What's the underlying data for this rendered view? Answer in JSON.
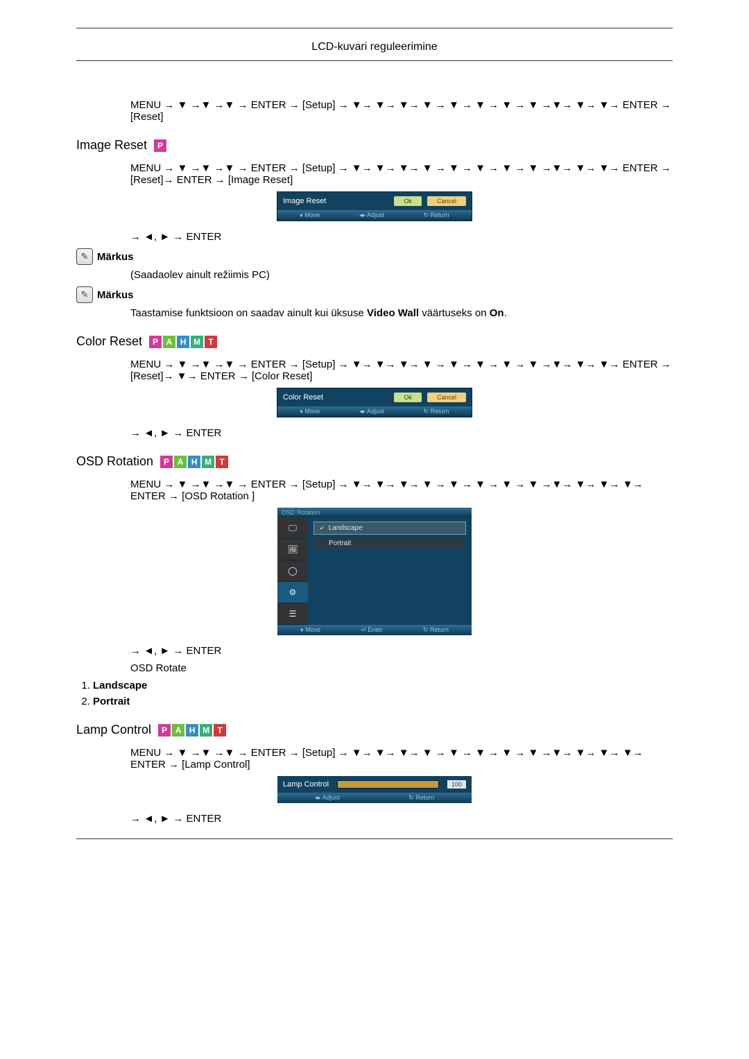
{
  "page": {
    "header": "LCD-kuvari reguleerimine"
  },
  "colors": {
    "badge_P": "#d23a9a",
    "badge_A": "#6bbf3a",
    "badge_H": "#3a8dbf",
    "badge_M": "#33b07a",
    "badge_T": "#d23a3a",
    "osd_bg": "#11425f",
    "osd_dark": "#0a2a44",
    "osd_tab_active": "#1a5a7f",
    "osd_tab_bg": "#333333",
    "osd_opt_bg": "#2a3a44",
    "osd_opt_sel": "#3a5a6a",
    "ok_btn_bg": "#c9e08a",
    "ok_btn_text": "#274a12",
    "cancel_btn_bg": "#f2cf7a",
    "cancel_btn_text": "#6a3a12",
    "slider_fill": "#c49a3a",
    "slider_bg": "#0a2a44"
  },
  "reset": {
    "nav": "MENU → ▼ →▼ →▼ → ENTER → [Setup] → ▼→ ▼→ ▼→ ▼ → ▼ → ▼ → ▼ → ▼ →▼→ ▼→ ▼→ ENTER → [Reset]"
  },
  "image_reset": {
    "title": "Image Reset",
    "badges": [
      "P"
    ],
    "nav": "MENU → ▼ →▼ →▼ → ENTER → [Setup] → ▼→ ▼→ ▼→ ▼ → ▼ → ▼ → ▼ → ▼ →▼→ ▼→ ▼→ ENTER → [Reset]→ ENTER → [Image Reset]",
    "osd": {
      "label": "Image Reset",
      "ok": "Ok",
      "cancel": "Cancel",
      "hints": {
        "move": "Move",
        "adjust": "Adjust",
        "return": "Return"
      }
    },
    "arrows": "→ ◄, ► → ENTER",
    "note_label1": "Märkus",
    "note1": "(Saadaolev ainult režiimis PC)",
    "note_label2": "Märkus",
    "note2_pre": "Taastamise funktsioon on saadav ainult kui üksuse ",
    "note2_mid": "Video Wall",
    "note2_mid2": " väärtuseks on ",
    "note2_end": "On",
    "note2_dot": "."
  },
  "color_reset": {
    "title": "Color Reset",
    "badges": [
      "P",
      "A",
      "H",
      "M",
      "T"
    ],
    "nav": "MENU → ▼ →▼ →▼ → ENTER → [Setup] → ▼→ ▼→ ▼→ ▼ → ▼ → ▼ → ▼ → ▼ →▼→ ▼→ ▼→ ENTER → [Reset]→ ▼→ ENTER → [Color Reset]",
    "osd": {
      "label": "Color Reset",
      "ok": "Ok",
      "cancel": "Cancel",
      "hints": {
        "move": "Move",
        "adjust": "Adjust",
        "return": "Return"
      }
    },
    "arrows": "→ ◄, ► → ENTER"
  },
  "osd_rotation": {
    "title": "OSD Rotation",
    "badges": [
      "P",
      "A",
      "H",
      "M",
      "T"
    ],
    "nav": "MENU → ▼ →▼ →▼ → ENTER → [Setup] → ▼→ ▼→ ▼→ ▼ → ▼ → ▼ → ▼ → ▼ →▼→ ▼→ ▼→ ▼→ ENTER → [OSD Rotation ]",
    "osd": {
      "titlebar": "OSD Rotation",
      "tabs_icons": [
        "screen",
        "picture",
        "circle",
        "gear",
        "list"
      ],
      "active_tab_index": 3,
      "options": [
        {
          "label": "Landscape",
          "selected": true
        },
        {
          "label": "Portrait",
          "selected": false
        }
      ],
      "hints": {
        "move": "Move",
        "enter": "Enter",
        "return": "Return"
      }
    },
    "arrows": "→ ◄, ► → ENTER",
    "subtitle": "OSD Rotate",
    "list": [
      "Landscape",
      "Portrait"
    ]
  },
  "lamp_control": {
    "title": "Lamp Control",
    "badges": [
      "P",
      "A",
      "H",
      "M",
      "T"
    ],
    "nav": "MENU → ▼ →▼ →▼ → ENTER → [Setup] → ▼→ ▼→ ▼→ ▼ → ▼ → ▼ → ▼ → ▼ →▼→ ▼→ ▼→ ▼→ ENTER → [Lamp Control]",
    "osd": {
      "label": "Lamp Control",
      "value": 100,
      "max": 100,
      "hints": {
        "adjust": "Adjust",
        "return": "Return"
      }
    },
    "arrows": "→ ◄, ► → ENTER"
  }
}
